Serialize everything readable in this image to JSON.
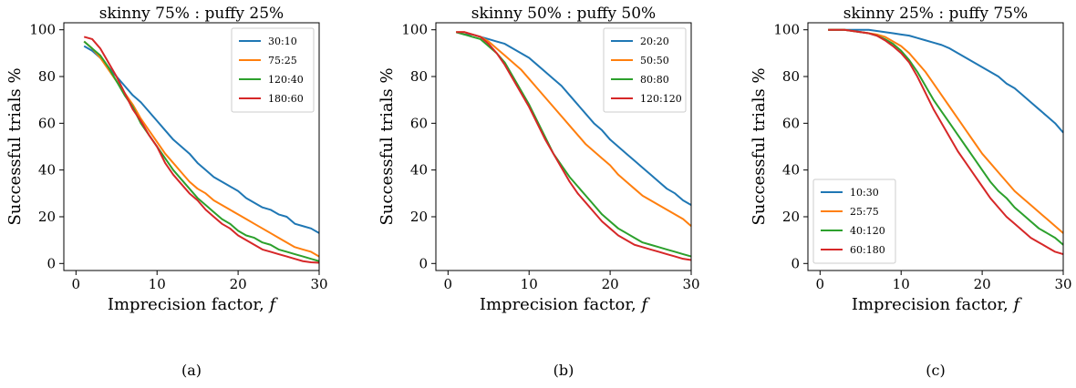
{
  "chart_data": [
    {
      "type": "line",
      "title": "skinny 75% : puffy 25%",
      "caption": "(a)",
      "xlabel": "Imprecision factor, ",
      "xlabel_var": "f",
      "ylabel": "Successful trials %",
      "xlim": [
        -1.5,
        30
      ],
      "ylim": [
        -3,
        103
      ],
      "xticks": [
        0,
        10,
        20,
        30
      ],
      "yticks": [
        0,
        20,
        40,
        60,
        80,
        100
      ],
      "legend_position": "top-right",
      "x": [
        1,
        2,
        3,
        4,
        5,
        6,
        7,
        8,
        9,
        10,
        11,
        12,
        13,
        14,
        15,
        16,
        17,
        18,
        19,
        20,
        21,
        22,
        23,
        24,
        25,
        26,
        27,
        28,
        29,
        30
      ],
      "series": [
        {
          "name": "30:10",
          "color": "#1f77b4",
          "values": [
            93,
            91,
            88,
            84,
            80,
            76,
            72,
            69,
            65,
            61,
            57,
            53,
            50,
            47,
            43,
            40,
            37,
            35,
            33,
            31,
            28,
            26,
            24,
            23,
            21,
            20,
            17,
            16,
            15,
            13
          ]
        },
        {
          "name": "75:25",
          "color": "#ff7f0e",
          "values": [
            95,
            92,
            88,
            83,
            78,
            73,
            68,
            62,
            57,
            52,
            47,
            43,
            39,
            35,
            32,
            30,
            27,
            25,
            23,
            21,
            19,
            17,
            15,
            13,
            11,
            9,
            7,
            6,
            5,
            3
          ]
        },
        {
          "name": "120:40",
          "color": "#2ca02c",
          "values": [
            95,
            92,
            89,
            84,
            78,
            72,
            67,
            60,
            55,
            50,
            45,
            40,
            36,
            32,
            28,
            25,
            22,
            19,
            17,
            14,
            12,
            11,
            9,
            8,
            6,
            5,
            4,
            3,
            2,
            1
          ]
        },
        {
          "name": "180:60",
          "color": "#d62728",
          "values": [
            97,
            96,
            92,
            86,
            80,
            73,
            66,
            61,
            55,
            50,
            43,
            38,
            34,
            30,
            27,
            23,
            20,
            17,
            15,
            12,
            10,
            8,
            6,
            5,
            4,
            3,
            2,
            1,
            0.5,
            0.3
          ]
        }
      ]
    },
    {
      "type": "line",
      "title": "skinny 50% : puffy 50%",
      "caption": "(b)",
      "xlabel": "Imprecision factor, ",
      "xlabel_var": "f",
      "ylabel": "Successful trials %",
      "xlim": [
        -1.5,
        30
      ],
      "ylim": [
        -3,
        103
      ],
      "xticks": [
        0,
        10,
        20,
        30
      ],
      "yticks": [
        0,
        20,
        40,
        60,
        80,
        100
      ],
      "legend_position": "top-right",
      "x": [
        1,
        2,
        3,
        4,
        5,
        6,
        7,
        8,
        9,
        10,
        11,
        12,
        13,
        14,
        15,
        16,
        17,
        18,
        19,
        20,
        21,
        22,
        23,
        24,
        25,
        26,
        27,
        28,
        29,
        30
      ],
      "series": [
        {
          "name": "20:20",
          "color": "#1f77b4",
          "values": [
            99,
            98,
            98,
            97,
            96,
            95,
            94,
            92,
            90,
            88,
            85,
            82,
            79,
            76,
            72,
            68,
            64,
            60,
            57,
            53,
            50,
            47,
            44,
            41,
            38,
            35,
            32,
            30,
            27,
            25
          ]
        },
        {
          "name": "50:50",
          "color": "#ff7f0e",
          "values": [
            99,
            99,
            98,
            97,
            95,
            92,
            89,
            86,
            83,
            79,
            75,
            71,
            67,
            63,
            59,
            55,
            51,
            48,
            45,
            42,
            38,
            35,
            32,
            29,
            27,
            25,
            23,
            21,
            19,
            16
          ]
        },
        {
          "name": "80:80",
          "color": "#2ca02c",
          "values": [
            99,
            98,
            97,
            96,
            93,
            90,
            86,
            80,
            74,
            68,
            61,
            54,
            47,
            42,
            37,
            33,
            29,
            25,
            21,
            18,
            15,
            13,
            11,
            9,
            8,
            7,
            6,
            5,
            4,
            3
          ]
        },
        {
          "name": "120:120",
          "color": "#d62728",
          "values": [
            99,
            99,
            98,
            97,
            94,
            90,
            85,
            79,
            73,
            67,
            60,
            53,
            47,
            41,
            35,
            30,
            26,
            22,
            18,
            15,
            12,
            10,
            8,
            7,
            6,
            5,
            4,
            3,
            2,
            1.5
          ]
        }
      ]
    },
    {
      "type": "line",
      "title": "skinny 25% : puffy 75%",
      "caption": "(c)",
      "xlabel": "Imprecision factor, ",
      "xlabel_var": "f",
      "ylabel": "Successful trials %",
      "xlim": [
        -1.5,
        30
      ],
      "ylim": [
        -3,
        103
      ],
      "xticks": [
        0,
        10,
        20,
        30
      ],
      "yticks": [
        0,
        20,
        40,
        60,
        80,
        100
      ],
      "legend_position": "bottom-left",
      "x": [
        1,
        2,
        3,
        4,
        5,
        6,
        7,
        8,
        9,
        10,
        11,
        12,
        13,
        14,
        15,
        16,
        17,
        18,
        19,
        20,
        21,
        22,
        23,
        24,
        25,
        26,
        27,
        28,
        29,
        30
      ],
      "series": [
        {
          "name": "10:30",
          "color": "#1f77b4",
          "values": [
            100,
            100,
            100,
            100,
            100,
            100,
            99.5,
            99,
            98.5,
            98,
            97.5,
            96.5,
            95.5,
            94.5,
            93.5,
            92,
            90,
            88,
            86,
            84,
            82,
            80,
            77,
            75,
            72,
            69,
            66,
            63,
            60,
            56
          ]
        },
        {
          "name": "25:75",
          "color": "#ff7f0e",
          "values": [
            100,
            100,
            100,
            99.5,
            99,
            98.5,
            98,
            97,
            95,
            93,
            90,
            86,
            82,
            77,
            72,
            67,
            62,
            57,
            52,
            47,
            43,
            39,
            35,
            31,
            28,
            25,
            22,
            19,
            16,
            13
          ]
        },
        {
          "name": "40:120",
          "color": "#2ca02c",
          "values": [
            100,
            100,
            100,
            99.5,
            99,
            98.5,
            97.5,
            96,
            94,
            91,
            87,
            82,
            76,
            70,
            65,
            60,
            55,
            50,
            45,
            40,
            35,
            31,
            28,
            24,
            21,
            18,
            15,
            13,
            11,
            8
          ]
        },
        {
          "name": "60:180",
          "color": "#d62728",
          "values": [
            100,
            100,
            100,
            99.5,
            99,
            98.5,
            97.5,
            95.5,
            93,
            90,
            86,
            80,
            73,
            66,
            60,
            54,
            48,
            43,
            38,
            33,
            28,
            24,
            20,
            17,
            14,
            11,
            9,
            7,
            5,
            4
          ]
        }
      ]
    }
  ]
}
